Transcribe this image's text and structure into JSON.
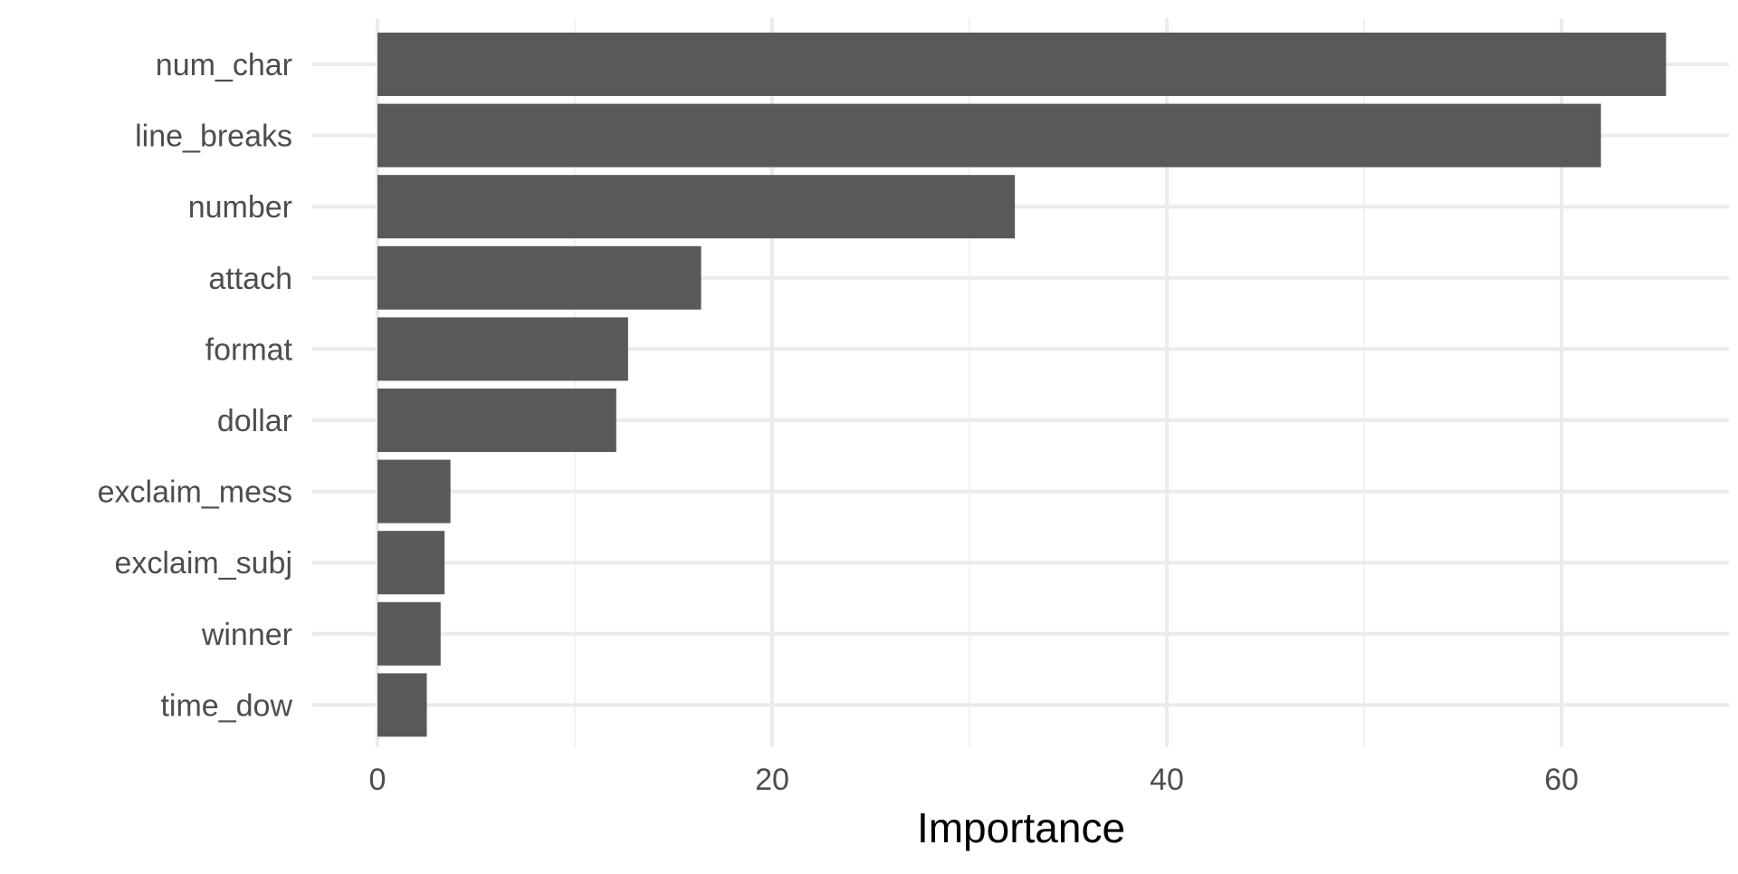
{
  "chart_data": {
    "type": "bar",
    "orientation": "horizontal",
    "title": "",
    "xlabel": "Importance",
    "ylabel": "",
    "categories": [
      "num_char",
      "line_breaks",
      "number",
      "attach",
      "format",
      "dollar",
      "exclaim_mess",
      "exclaim_subj",
      "winner",
      "time_dow"
    ],
    "values": [
      65.3,
      62.0,
      32.3,
      16.4,
      12.7,
      12.1,
      3.7,
      3.4,
      3.2,
      2.5
    ],
    "xlim": [
      -3.3,
      68.5
    ],
    "xticks": [
      0,
      20,
      40,
      60
    ],
    "xtick_labels": [
      "0",
      "20",
      "40",
      "60"
    ],
    "grid": true,
    "legend": "none",
    "colors": {
      "bar": "#595959",
      "grid_major": "#ebebeb",
      "grid_minor": "#f2f2f2",
      "tick_text": "#4d4d4d",
      "title_text": "#000000"
    }
  }
}
